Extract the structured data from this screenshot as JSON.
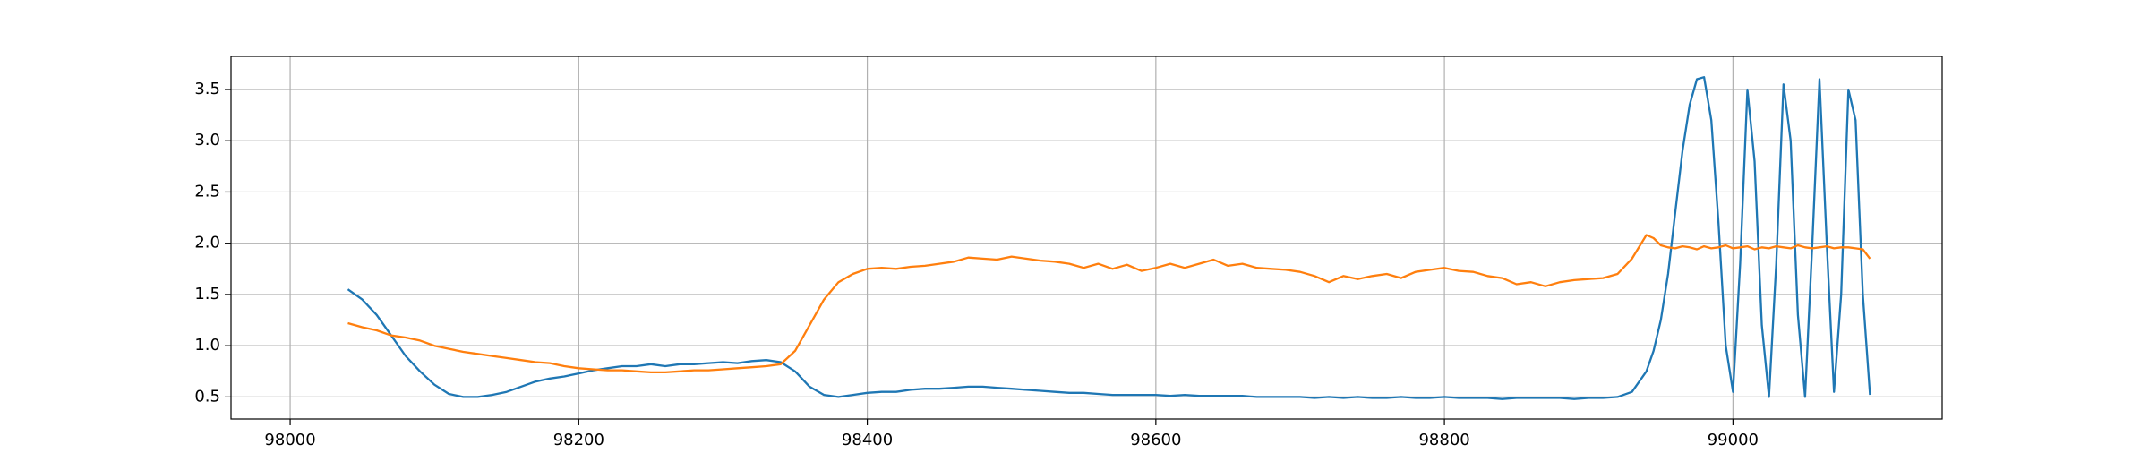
{
  "chart_data": {
    "type": "line",
    "grid": true,
    "x": [
      98040,
      98050,
      98060,
      98070,
      98080,
      98090,
      98100,
      98110,
      98120,
      98130,
      98140,
      98150,
      98160,
      98170,
      98180,
      98190,
      98200,
      98210,
      98220,
      98230,
      98240,
      98250,
      98260,
      98270,
      98280,
      98290,
      98300,
      98310,
      98320,
      98330,
      98340,
      98350,
      98360,
      98370,
      98380,
      98390,
      98400,
      98410,
      98420,
      98430,
      98440,
      98450,
      98460,
      98470,
      98480,
      98490,
      98500,
      98510,
      98520,
      98530,
      98540,
      98550,
      98560,
      98570,
      98580,
      98590,
      98600,
      98610,
      98620,
      98630,
      98640,
      98650,
      98660,
      98670,
      98680,
      98690,
      98700,
      98710,
      98720,
      98730,
      98740,
      98750,
      98760,
      98770,
      98780,
      98790,
      98800,
      98810,
      98820,
      98830,
      98840,
      98850,
      98860,
      98870,
      98880,
      98890,
      98900,
      98910,
      98920,
      98930,
      98940,
      98945,
      98950,
      98955,
      98960,
      98965,
      98970,
      98975,
      98980,
      98985,
      98990,
      98995,
      99000,
      99005,
      99010,
      99015,
      99020,
      99025,
      99030,
      99035,
      99040,
      99045,
      99050,
      99055,
      99060,
      99065,
      99070,
      99075,
      99080,
      99085,
      99090,
      99095
    ],
    "series": [
      {
        "color": "#1f77b4",
        "values": [
          1.55,
          1.45,
          1.3,
          1.1,
          0.9,
          0.75,
          0.62,
          0.53,
          0.5,
          0.5,
          0.52,
          0.55,
          0.6,
          0.65,
          0.68,
          0.7,
          0.73,
          0.76,
          0.78,
          0.8,
          0.8,
          0.82,
          0.8,
          0.82,
          0.82,
          0.83,
          0.84,
          0.83,
          0.85,
          0.86,
          0.84,
          0.75,
          0.6,
          0.52,
          0.5,
          0.52,
          0.54,
          0.55,
          0.55,
          0.57,
          0.58,
          0.58,
          0.59,
          0.6,
          0.6,
          0.59,
          0.58,
          0.57,
          0.56,
          0.55,
          0.54,
          0.54,
          0.53,
          0.52,
          0.52,
          0.52,
          0.52,
          0.51,
          0.52,
          0.51,
          0.51,
          0.51,
          0.51,
          0.5,
          0.5,
          0.5,
          0.5,
          0.49,
          0.5,
          0.49,
          0.5,
          0.49,
          0.49,
          0.5,
          0.49,
          0.49,
          0.5,
          0.49,
          0.49,
          0.49,
          0.48,
          0.49,
          0.49,
          0.49,
          0.49,
          0.48,
          0.49,
          0.49,
          0.5,
          0.55,
          0.75,
          0.95,
          1.25,
          1.7,
          2.3,
          2.9,
          3.35,
          3.6,
          3.62,
          3.2,
          2.2,
          1.0,
          0.55,
          1.8,
          3.5,
          2.8,
          1.2,
          0.5,
          1.8,
          3.55,
          3.0,
          1.3,
          0.5,
          2.0,
          3.6,
          2.0,
          0.55,
          1.5,
          3.5,
          3.2,
          1.5,
          0.52
        ]
      },
      {
        "color": "#ff7f0e",
        "values": [
          1.22,
          1.18,
          1.15,
          1.1,
          1.08,
          1.05,
          1.0,
          0.97,
          0.94,
          0.92,
          0.9,
          0.88,
          0.86,
          0.84,
          0.83,
          0.8,
          0.78,
          0.77,
          0.76,
          0.76,
          0.75,
          0.74,
          0.74,
          0.75,
          0.76,
          0.76,
          0.77,
          0.78,
          0.79,
          0.8,
          0.82,
          0.95,
          1.2,
          1.45,
          1.62,
          1.7,
          1.75,
          1.76,
          1.75,
          1.77,
          1.78,
          1.8,
          1.82,
          1.86,
          1.85,
          1.84,
          1.87,
          1.85,
          1.83,
          1.82,
          1.8,
          1.76,
          1.8,
          1.75,
          1.79,
          1.73,
          1.76,
          1.8,
          1.76,
          1.8,
          1.84,
          1.78,
          1.8,
          1.76,
          1.75,
          1.74,
          1.72,
          1.68,
          1.62,
          1.68,
          1.65,
          1.68,
          1.7,
          1.66,
          1.72,
          1.74,
          1.76,
          1.73,
          1.72,
          1.68,
          1.66,
          1.6,
          1.62,
          1.58,
          1.62,
          1.64,
          1.65,
          1.66,
          1.7,
          1.85,
          2.08,
          2.05,
          1.98,
          1.96,
          1.95,
          1.97,
          1.96,
          1.94,
          1.97,
          1.95,
          1.96,
          1.98,
          1.95,
          1.96,
          1.97,
          1.94,
          1.96,
          1.95,
          1.97,
          1.96,
          1.95,
          1.98,
          1.96,
          1.95,
          1.96,
          1.97,
          1.95,
          1.96,
          1.96,
          1.95,
          1.94,
          1.85
        ]
      }
    ],
    "xlim": [
      97959,
      99145
    ],
    "ylim": [
      0.285,
      3.823
    ],
    "xticks": [
      98000,
      98200,
      98400,
      98600,
      98800,
      99000
    ],
    "yticks": [
      0.5,
      {
        "value": 1,
        "label": "1.0"
      },
      1.5,
      {
        "value": 2,
        "label": "2.0"
      },
      2.5,
      {
        "value": 3,
        "label": "3.0"
      },
      3.5
    ]
  }
}
